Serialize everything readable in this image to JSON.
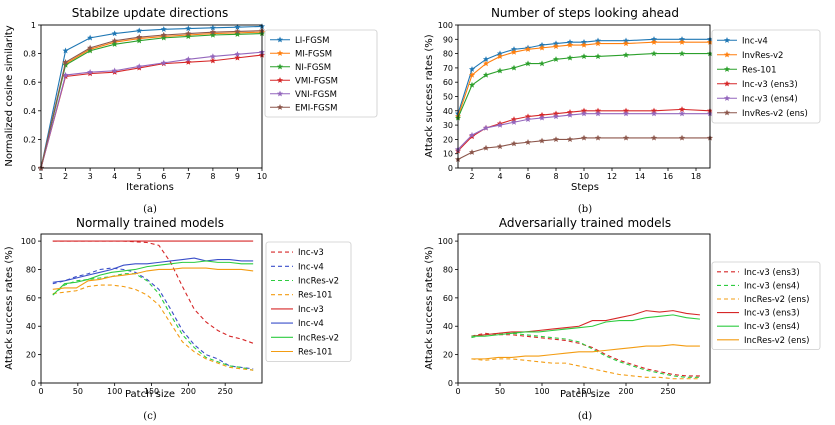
{
  "chart_data": [
    {
      "type": "line",
      "title": "Stabilze update directions",
      "xlabel": "Iterations",
      "ylabel": "Normalized cosine similarity",
      "caption": "(a)",
      "xlim": [
        1,
        10
      ],
      "ylim": [
        0,
        1.0
      ],
      "xticks": [
        1,
        2,
        3,
        4,
        5,
        6,
        7,
        8,
        9,
        10
      ],
      "yticks": [
        0,
        0.2,
        0.4,
        0.6,
        0.8,
        1.0
      ],
      "ytick_labels": [
        "0",
        "0.2",
        "0.4",
        "0.6",
        "0.8",
        "1"
      ],
      "legend": "right",
      "x": [
        1,
        2,
        3,
        4,
        5,
        6,
        7,
        8,
        9,
        10
      ],
      "series": [
        {
          "name": "LI-FGSM",
          "color": "#1f77b4",
          "marker": "star",
          "values": [
            0.0,
            0.82,
            0.91,
            0.94,
            0.96,
            0.97,
            0.975,
            0.98,
            0.985,
            0.99
          ]
        },
        {
          "name": "MI-FGSM",
          "color": "#ff7f0e",
          "marker": "star",
          "values": [
            0.0,
            0.73,
            0.83,
            0.88,
            0.905,
            0.92,
            0.93,
            0.94,
            0.945,
            0.95
          ]
        },
        {
          "name": "NI-FGSM",
          "color": "#2ca02c",
          "marker": "star",
          "values": [
            0.0,
            0.72,
            0.82,
            0.865,
            0.89,
            0.91,
            0.92,
            0.93,
            0.935,
            0.94
          ]
        },
        {
          "name": "VMI-FGSM",
          "color": "#d62728",
          "marker": "star",
          "values": [
            0.0,
            0.64,
            0.66,
            0.67,
            0.7,
            0.73,
            0.74,
            0.75,
            0.77,
            0.79
          ]
        },
        {
          "name": "VNI-FGSM",
          "color": "#9467bd",
          "marker": "star",
          "values": [
            0.0,
            0.65,
            0.67,
            0.68,
            0.71,
            0.735,
            0.76,
            0.78,
            0.795,
            0.81
          ]
        },
        {
          "name": "EMI-FGSM",
          "color": "#8c564b",
          "marker": "star",
          "values": [
            0.0,
            0.74,
            0.84,
            0.89,
            0.915,
            0.93,
            0.94,
            0.95,
            0.955,
            0.96
          ]
        }
      ]
    },
    {
      "type": "line",
      "title": "Number of steps looking ahead",
      "xlabel": "Steps",
      "ylabel": "Attack success rates (%)",
      "caption": "(b)",
      "xlim": [
        1,
        19
      ],
      "ylim": [
        0,
        100
      ],
      "xticks": [
        2,
        4,
        6,
        8,
        10,
        12,
        14,
        16,
        18
      ],
      "yticks": [
        0,
        10,
        20,
        30,
        40,
        50,
        60,
        70,
        80,
        90,
        100
      ],
      "legend": "right",
      "x": [
        1,
        2,
        3,
        4,
        5,
        6,
        7,
        8,
        9,
        10,
        11,
        13,
        15,
        17,
        19
      ],
      "series": [
        {
          "name": "Inc-v4",
          "color": "#1f77b4",
          "marker": "star",
          "values": [
            38,
            69,
            76,
            80,
            83,
            84,
            86,
            87,
            88,
            88,
            89,
            89,
            90,
            90,
            90
          ]
        },
        {
          "name": "InvRes-v2",
          "color": "#ff7f0e",
          "marker": "star",
          "values": [
            36,
            65,
            73,
            78,
            81,
            83,
            84,
            85,
            86,
            86,
            87,
            87,
            88,
            88,
            88
          ]
        },
        {
          "name": "Res-101",
          "color": "#2ca02c",
          "marker": "star",
          "values": [
            35,
            58,
            65,
            68,
            70,
            73,
            73,
            76,
            77,
            78,
            78,
            79,
            80,
            80,
            80
          ]
        },
        {
          "name": "Inc-v3 (ens3)",
          "color": "#d62728",
          "marker": "star",
          "values": [
            12,
            22,
            28,
            31,
            34,
            36,
            37,
            38,
            39,
            40,
            40,
            40,
            40,
            41,
            40
          ]
        },
        {
          "name": "Inc-v3 (ens4)",
          "color": "#9467bd",
          "marker": "star",
          "values": [
            13,
            23,
            28,
            30,
            32,
            34,
            35,
            36,
            37,
            38,
            38,
            38,
            38,
            38,
            38
          ]
        },
        {
          "name": "InvRes-v2 (ens)",
          "color": "#8c564b",
          "marker": "star",
          "values": [
            6,
            11,
            14,
            15,
            17,
            18,
            19,
            20,
            20,
            21,
            21,
            21,
            21,
            21,
            21
          ]
        }
      ]
    },
    {
      "type": "line",
      "title": "Normally trained models",
      "xlabel": "Patch size",
      "ylabel": "Attack success rates (%)",
      "caption": "(c)",
      "xlim": [
        0,
        300
      ],
      "ylim": [
        0,
        105
      ],
      "xticks": [
        0,
        50,
        100,
        150,
        200,
        250
      ],
      "yticks": [
        0,
        20,
        40,
        60,
        80,
        100
      ],
      "legend": "right",
      "x": [
        16,
        32,
        48,
        64,
        80,
        96,
        112,
        128,
        144,
        160,
        176,
        192,
        208,
        224,
        240,
        256,
        272,
        288
      ],
      "series": [
        {
          "name": "Inc-v3",
          "color": "#d62728",
          "dash": "4,3",
          "values": [
            100,
            100,
            100,
            100,
            100,
            100,
            100,
            99.5,
            99,
            97,
            85,
            68,
            52,
            43,
            37,
            33,
            31,
            28
          ]
        },
        {
          "name": "Inc-v4",
          "color": "#3a4fc9",
          "dash": "4,3",
          "values": [
            70,
            72,
            75,
            77,
            80,
            81,
            80,
            78,
            73,
            66,
            52,
            37,
            27,
            20,
            17,
            12,
            11,
            10
          ]
        },
        {
          "name": "IncRes-v2",
          "color": "#2ecc40",
          "dash": "4,3",
          "values": [
            62,
            69,
            72,
            73,
            74,
            75,
            77,
            77,
            72,
            63,
            48,
            34,
            25,
            18,
            15,
            12,
            11,
            9
          ]
        },
        {
          "name": "Res-101",
          "color": "#f39c12",
          "dash": "4,3",
          "values": [
            63,
            64,
            65,
            68,
            69,
            69,
            68,
            66,
            62,
            55,
            42,
            29,
            22,
            17,
            14,
            11,
            10,
            9
          ]
        },
        {
          "name": "Inc-v3",
          "color": "#d62728",
          "dash": "",
          "values": [
            100,
            100,
            100,
            100,
            100,
            100,
            100,
            100,
            100,
            100,
            100,
            100,
            100,
            100,
            100,
            100,
            100,
            100
          ]
        },
        {
          "name": "Inc-v4",
          "color": "#3a4fc9",
          "dash": "",
          "values": [
            71,
            72,
            74,
            76,
            78,
            80,
            83,
            84,
            84,
            85,
            86,
            87,
            88,
            86,
            87,
            87,
            86,
            86
          ]
        },
        {
          "name": "IncRes-v2",
          "color": "#2ecc40",
          "dash": "",
          "values": [
            62,
            70,
            71,
            73,
            76,
            78,
            79,
            80,
            82,
            83,
            84,
            85,
            85,
            86,
            85,
            85,
            84,
            84
          ]
        },
        {
          "name": "Res-101",
          "color": "#f39c12",
          "dash": "",
          "values": [
            66,
            67,
            67,
            72,
            73,
            75,
            76,
            77,
            79,
            80,
            80,
            81,
            81,
            81,
            80,
            80,
            80,
            79
          ]
        }
      ]
    },
    {
      "type": "line",
      "title": "Adversarially trained models",
      "xlabel": "Patch size",
      "ylabel": "Attack success rates (%)",
      "caption": "(d)",
      "xlim": [
        0,
        300
      ],
      "ylim": [
        0,
        105
      ],
      "xticks": [
        0,
        50,
        100,
        150,
        200,
        250
      ],
      "yticks": [
        0,
        20,
        40,
        60,
        80,
        100
      ],
      "legend": "right",
      "x": [
        16,
        32,
        48,
        64,
        80,
        96,
        112,
        128,
        144,
        160,
        176,
        192,
        208,
        224,
        240,
        256,
        272,
        288
      ],
      "series": [
        {
          "name": "Inc-v3 (ens3)",
          "color": "#d62728",
          "dash": "4,3",
          "values": [
            33,
            35,
            34,
            34,
            33,
            32,
            31,
            30,
            28,
            25,
            20,
            16,
            13,
            10,
            8,
            6,
            5,
            5
          ]
        },
        {
          "name": "Inc-v3 (ens4)",
          "color": "#2ecc40",
          "dash": "4,3",
          "values": [
            32,
            34,
            35,
            35,
            34,
            33,
            32,
            31,
            29,
            24,
            19,
            15,
            12,
            9,
            7,
            5,
            4,
            4
          ]
        },
        {
          "name": "IncRes-v2 (ens)",
          "color": "#f39c12",
          "dash": "4,3",
          "values": [
            17,
            16,
            17,
            17,
            16,
            15,
            14,
            14,
            12,
            10,
            8,
            6,
            5,
            4,
            4,
            3,
            3,
            3
          ]
        },
        {
          "name": "Inc-v3 (ens3)",
          "color": "#d62728",
          "dash": "",
          "values": [
            33,
            34,
            35,
            36,
            36,
            37,
            38,
            39,
            40,
            44,
            44,
            46,
            48,
            51,
            50,
            51,
            49,
            48
          ]
        },
        {
          "name": "Inc-v3 (ens4)",
          "color": "#2ecc40",
          "dash": "",
          "values": [
            33,
            33,
            34,
            35,
            36,
            36,
            37,
            38,
            39,
            40,
            43,
            44,
            44,
            46,
            47,
            48,
            46,
            45
          ]
        },
        {
          "name": "IncRes-v2 (ens)",
          "color": "#f39c12",
          "dash": "",
          "values": [
            17,
            17,
            18,
            18,
            19,
            19,
            20,
            21,
            22,
            22,
            23,
            24,
            25,
            26,
            26,
            27,
            26,
            26
          ]
        }
      ]
    }
  ]
}
